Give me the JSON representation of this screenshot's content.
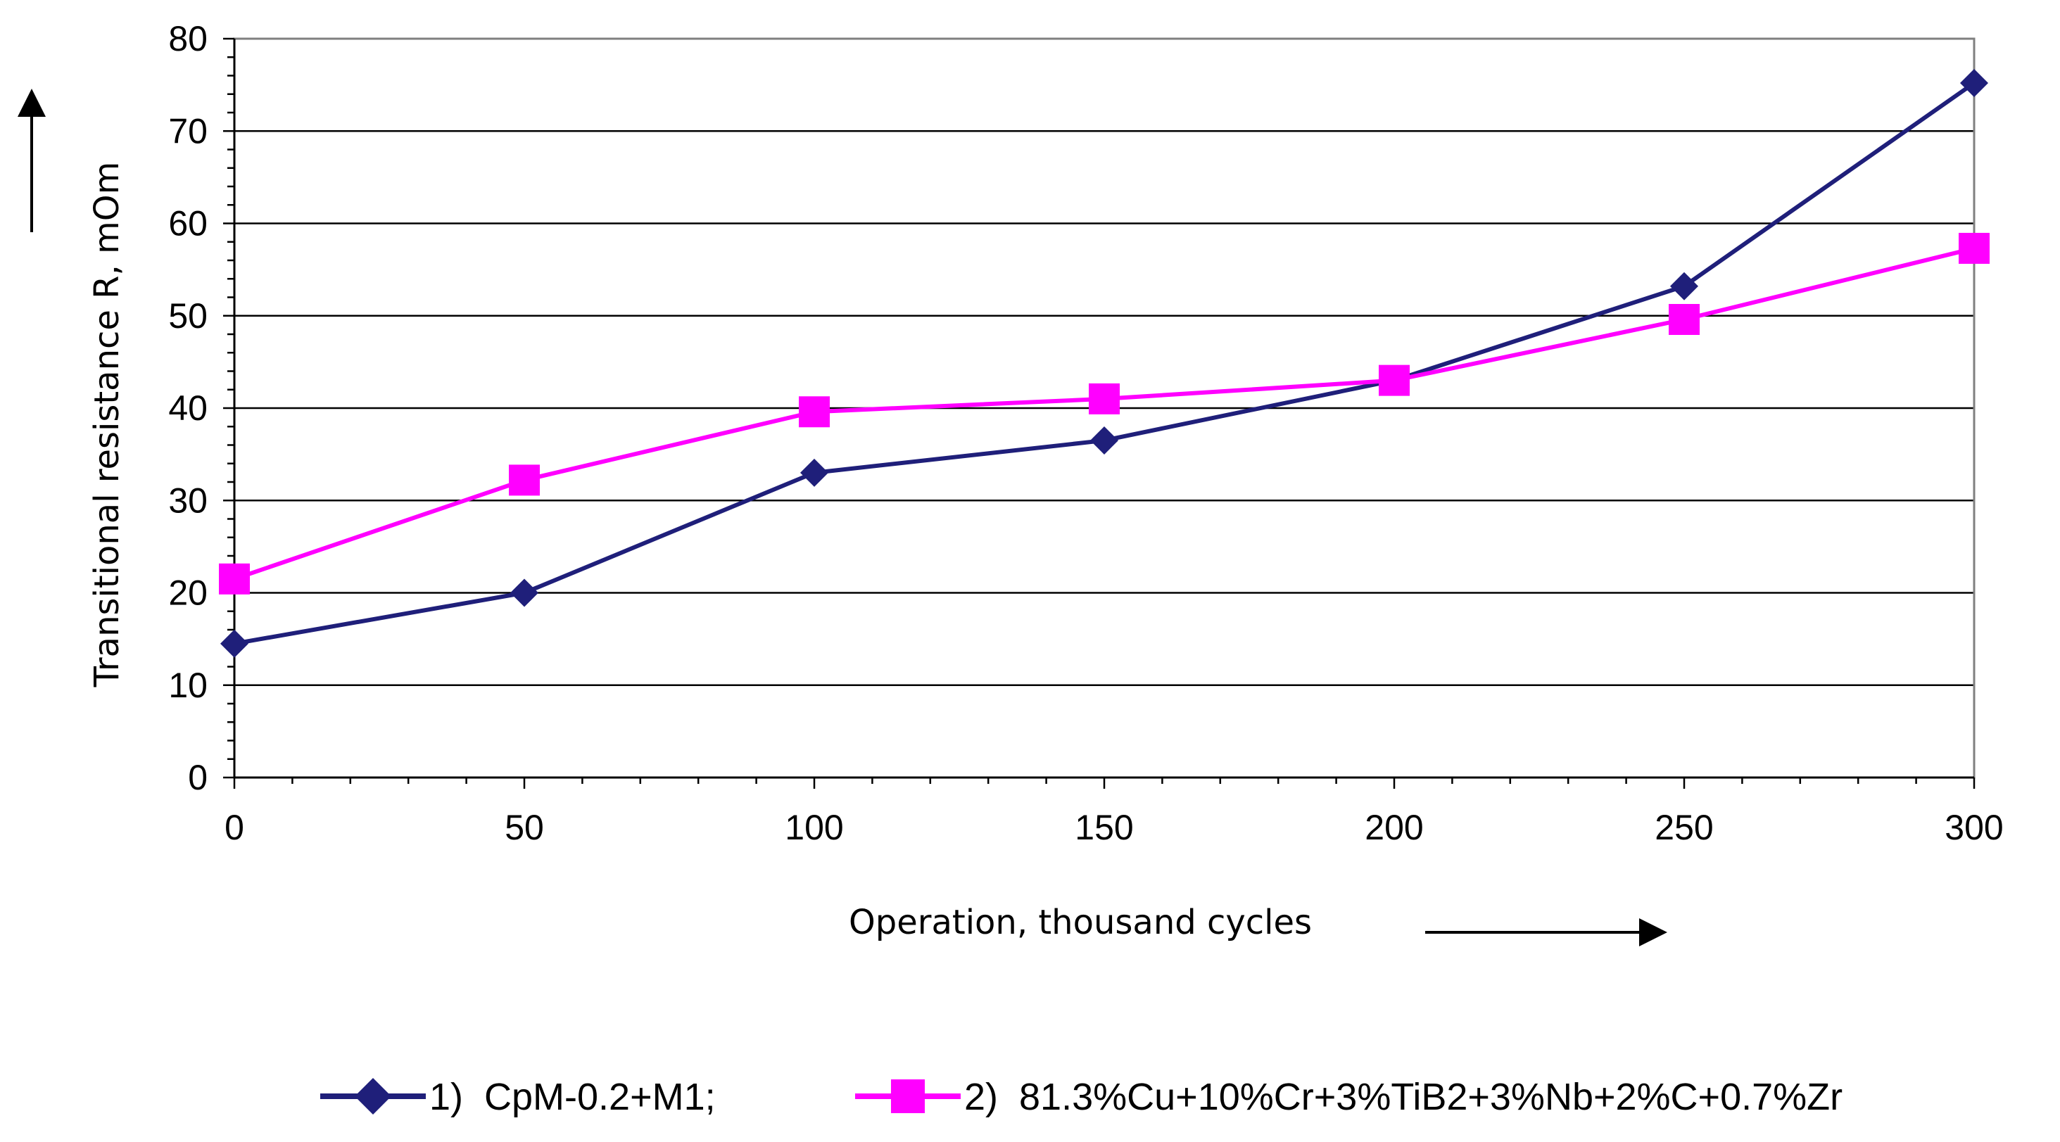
{
  "chart_data": {
    "type": "line",
    "title": "",
    "xlabel": "Operation, thousand cycles",
    "ylabel": "Transitional resistance R, mOm",
    "x": [
      0,
      50,
      100,
      150,
      200,
      250,
      300
    ],
    "xlim": [
      0,
      300
    ],
    "ylim": [
      0,
      80
    ],
    "xticks": [
      "0",
      "50",
      "100",
      "150",
      "200",
      "250",
      "300"
    ],
    "yticks": [
      "0",
      "10",
      "20",
      "30",
      "40",
      "50",
      "60",
      "70",
      "80"
    ],
    "grid": "horizontal",
    "legend_position": "bottom",
    "series": [
      {
        "name": "1)  CpM-0.2+M1;",
        "color": "#1f1f7a",
        "marker": "diamond",
        "values": [
          14.5,
          20,
          33,
          36.5,
          43,
          53.2,
          75.2
        ]
      },
      {
        "name": "2)  81.3%Cu+10%Cr+3%TiB2+3%Nb+2%C+0.7%Zr",
        "color": "#ff00ff",
        "marker": "square",
        "values": [
          21.5,
          32.2,
          39.6,
          41,
          43,
          49.6,
          57.3
        ]
      }
    ]
  }
}
